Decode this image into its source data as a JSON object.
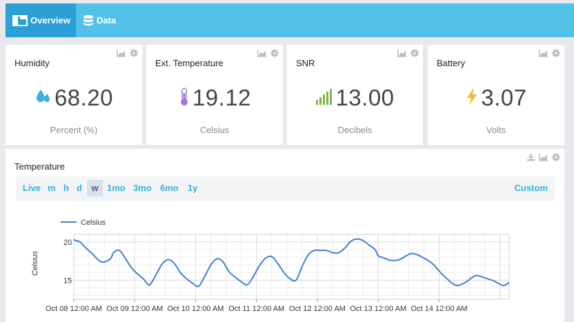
{
  "tabs": [
    {
      "label": "Overview",
      "icon": "dashboard-icon",
      "active": true
    },
    {
      "label": "Data",
      "icon": "database-icon",
      "active": false
    }
  ],
  "cards": [
    {
      "title": "Humidity",
      "value": "68.20",
      "unit": "Percent (%)",
      "icon": "water-drop-icon",
      "color": "#36b1e0"
    },
    {
      "title": "Ext. Temperature",
      "value": "19.12",
      "unit": "Celsius",
      "icon": "thermometer-icon",
      "color": "#a077d9"
    },
    {
      "title": "SNR",
      "value": "13.00",
      "unit": "Decibels",
      "icon": "signal-bars-icon",
      "color": "#7ab648"
    },
    {
      "title": "Battery",
      "value": "3.07",
      "unit": "Volts",
      "icon": "lightning-bolt-icon",
      "color": "#f5b82e"
    }
  ],
  "temperature_panel": {
    "title": "Temperature",
    "ranges": [
      "Live",
      "m",
      "h",
      "d",
      "w",
      "1mo",
      "3mo",
      "6mo",
      "1y"
    ],
    "selected_range": "w",
    "custom_label": "Custom"
  },
  "chart_data": {
    "type": "line",
    "title": "",
    "xlabel": "",
    "ylabel": "Celsius",
    "legend": "top-left",
    "grid": true,
    "series": [
      {
        "name": "Celsius",
        "color": "#3f7fd3",
        "x": [
          0,
          0.1,
          0.2,
          0.3,
          0.45,
          0.6,
          0.65,
          0.75,
          0.85,
          0.95,
          1.05,
          1.15,
          1.2,
          1.25,
          1.35,
          1.45,
          1.55,
          1.65,
          1.75,
          1.85,
          1.95,
          2.05,
          2.15,
          2.25,
          2.35,
          2.45,
          2.55,
          2.65,
          2.75,
          2.85,
          2.95,
          3.05,
          3.15,
          3.25,
          3.35,
          3.45,
          3.55,
          3.65,
          3.75,
          3.85,
          3.95,
          4.05,
          4.15,
          4.25,
          4.35,
          4.45,
          4.55,
          4.65,
          4.75,
          4.85,
          4.95,
          5.0,
          5.1,
          5.2,
          5.35,
          5.55,
          5.75,
          5.9,
          6.0,
          6.1,
          6.2,
          6.3,
          6.45,
          6.6,
          6.75,
          6.9,
          7.05,
          7.15
        ],
        "y": [
          20.3,
          20.0,
          19.2,
          18.5,
          17.4,
          17.8,
          18.6,
          18.9,
          17.8,
          16.6,
          15.8,
          15.1,
          14.6,
          14.4,
          15.7,
          17.1,
          17.7,
          17.2,
          16.0,
          15.2,
          14.6,
          14.2,
          15.5,
          17.0,
          17.8,
          17.4,
          16.1,
          15.4,
          14.8,
          14.4,
          15.5,
          16.9,
          17.9,
          18.1,
          17.2,
          16.0,
          15.2,
          15.0,
          16.8,
          18.3,
          18.9,
          18.9,
          18.9,
          18.6,
          18.6,
          19.2,
          20.1,
          20.4,
          20.2,
          19.6,
          19.0,
          18.2,
          17.9,
          17.6,
          17.7,
          18.5,
          17.9,
          17.1,
          16.2,
          15.4,
          14.7,
          14.3,
          14.8,
          15.6,
          15.3,
          14.9,
          14.3,
          14.7
        ],
        "note": "x in days since Oct 08 12:00 AM"
      }
    ],
    "ylim": [
      12.5,
      21
    ],
    "yticks": [
      15,
      20
    ],
    "xticks": [
      "Oct 08 12:00 AM",
      "Oct 09 12:00 AM",
      "Oct 10 12:00 AM",
      "Oct 11 12:00 AM",
      "Oct 12 12:00 AM",
      "Oct 13 12:00 AM",
      "Oct 14 12:00 AM"
    ]
  }
}
